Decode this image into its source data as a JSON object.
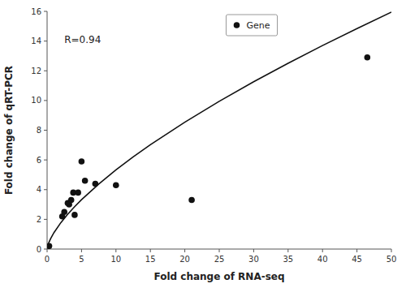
{
  "chart_data": {
    "type": "scatter",
    "xlabel": "Fold change of RNA-seq",
    "ylabel": "Fold change of qRT-PCR",
    "annotations": [
      "R=0.94"
    ],
    "series": [
      {
        "name": "Gene",
        "type": "scatter",
        "color": "#111111",
        "marker": "circle",
        "x": [
          0.3,
          2.2,
          2.5,
          3.0,
          3.2,
          3.5,
          3.8,
          4.0,
          4.5,
          5.0,
          5.5,
          7.0,
          10.0,
          21.0,
          46.5
        ],
        "values": [
          0.2,
          2.2,
          2.5,
          3.1,
          3.0,
          3.3,
          3.8,
          2.3,
          3.8,
          5.9,
          4.6,
          4.4,
          4.3,
          3.3,
          12.9
        ]
      },
      {
        "type": "line",
        "color": "#111111",
        "line_style": "solid",
        "x": [
          0.05,
          0.1,
          0.25,
          0.5,
          1,
          2,
          3,
          4,
          5,
          7.5,
          10,
          12.5,
          15,
          20,
          25,
          30,
          35,
          40,
          45,
          50
        ],
        "values": [
          0.1441,
          0.231,
          0.4313,
          0.6917,
          1.1093,
          1.779,
          2.345,
          2.8529,
          3.3213,
          4.3782,
          5.3264,
          6.201,
          7.0212,
          8.5414,
          9.944,
          11.2594,
          12.5063,
          13.6976,
          14.8422,
          15.9469
        ]
      }
    ],
    "xlim": [
      0,
      50
    ],
    "ylim": [
      0,
      16
    ],
    "xticks": [
      0,
      5,
      10,
      15,
      20,
      25,
      30,
      35,
      40,
      45,
      50
    ],
    "yticks": [
      0,
      2,
      4,
      6,
      8,
      10,
      12,
      14,
      16
    ],
    "grid": false,
    "legend": "upper center"
  }
}
